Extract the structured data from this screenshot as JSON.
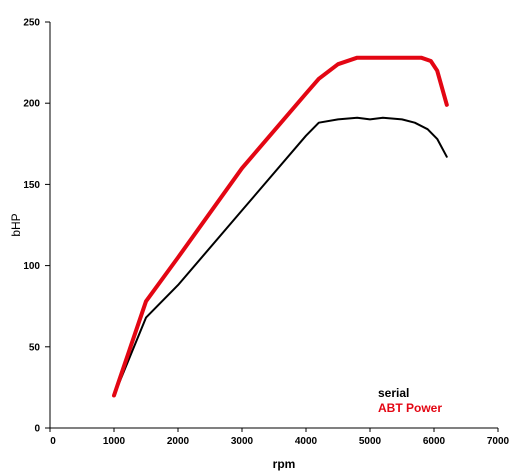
{
  "chart_data": {
    "type": "line",
    "title": "",
    "xlabel": "rpm",
    "ylabel": "bHP",
    "xlim": [
      0,
      7000
    ],
    "ylim": [
      0,
      250
    ],
    "x_ticks": [
      "0",
      "1000",
      "2000",
      "3000",
      "4000",
      "5000",
      "6000",
      "7000"
    ],
    "y_ticks": [
      "0",
      "50",
      "100",
      "150",
      "200",
      "250"
    ],
    "grid": false,
    "legend_position": "bottom-right",
    "series": [
      {
        "name": "serial",
        "color": "#000000",
        "x": [
          1000,
          1500,
          2000,
          3000,
          4000,
          4200,
          4500,
          4800,
          5000,
          5200,
          5500,
          5700,
          5900,
          6050,
          6200
        ],
        "y": [
          20,
          68,
          88,
          134,
          180,
          188,
          190,
          191,
          190,
          191,
          190,
          188,
          184,
          178,
          167
        ]
      },
      {
        "name": "ABT Power",
        "color": "#e30613",
        "x": [
          1000,
          1500,
          2000,
          3000,
          4000,
          4200,
          4500,
          4800,
          5000,
          5500,
          5800,
          5950,
          6050,
          6200
        ],
        "y": [
          20,
          78,
          105,
          160,
          206,
          215,
          224,
          228,
          228,
          228,
          228,
          226,
          220,
          199
        ]
      }
    ]
  }
}
